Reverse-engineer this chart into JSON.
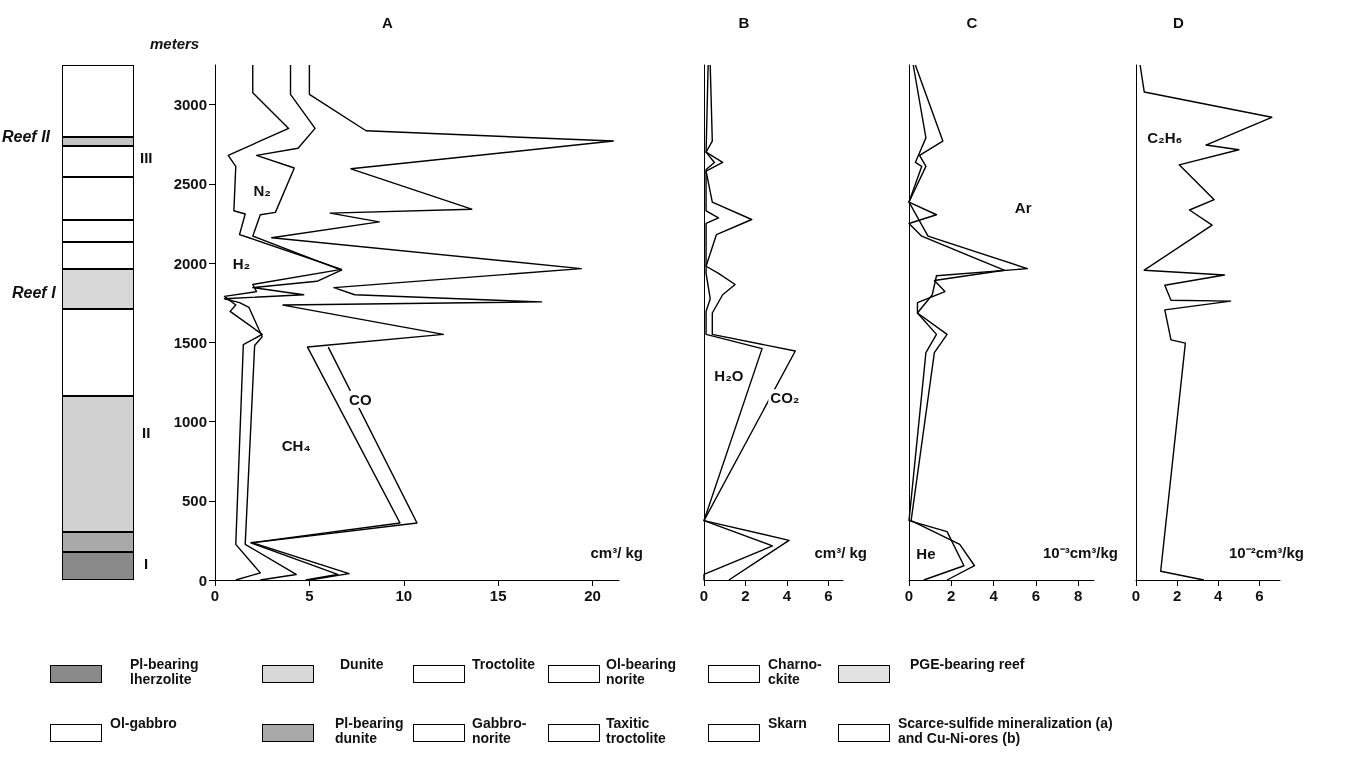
{
  "chart_data": [
    {
      "type": "line",
      "title": "A",
      "xlabel": "cm³/ kg",
      "ylabel": "meters",
      "marker": "none",
      "xlim": [
        0,
        21.4
      ],
      "xticks": [
        0,
        5,
        10,
        15,
        20
      ],
      "ylim": [
        0,
        3250
      ],
      "yticks": [
        0,
        500,
        1000,
        1500,
        2000,
        2500,
        3000
      ],
      "series": [
        {
          "color": "#000000",
          "x": [
            2.0,
            2.0,
            3.9,
            0.7,
            1.1,
            1.0,
            1.6,
            1.3,
            1.8,
            6.7,
            2.0,
            2.2,
            0.5,
            1.1,
            0.8,
            2.5,
            1.5,
            1.1,
            2.4,
            1.1
          ],
          "values": [
            3250,
            3075,
            2850,
            2680,
            2610,
            2330,
            2310,
            2180,
            2160,
            1960,
            1865,
            1820,
            1790,
            1735,
            1695,
            1550,
            1485,
            225,
            45,
            0
          ]
        },
        {
          "color": "#000000",
          "x": [
            4.0,
            4.0,
            5.3,
            4.4,
            2.2,
            4.2,
            3.2,
            2.4,
            2.0,
            6.7,
            5.4,
            2.0,
            4.7,
            0.5,
            1.3,
            1.8,
            2.5,
            2.1,
            1.6,
            4.3,
            2.4
          ],
          "values": [
            3250,
            3065,
            2850,
            2725,
            2680,
            2600,
            2320,
            2305,
            2170,
            1955,
            1885,
            1845,
            1800,
            1775,
            1750,
            1720,
            1535,
            1480,
            225,
            35,
            0
          ]
        },
        {
          "color": "#000000",
          "x": [
            5.0,
            5.0,
            8.0,
            21.1,
            7.2,
            13.6,
            6.1,
            8.7,
            3.0,
            19.4,
            6.3,
            7.4,
            17.3,
            3.6,
            12.1,
            4.9,
            9.8,
            1.9,
            6.5,
            4.8
          ],
          "values": [
            3250,
            3065,
            2835,
            2770,
            2595,
            2340,
            2315,
            2260,
            2160,
            1965,
            1845,
            1800,
            1755,
            1735,
            1550,
            1470,
            360,
            235,
            35,
            0
          ]
        },
        {
          "color": "#000000",
          "x": [
            6.0,
            10.7,
            2.0,
            7.1,
            5.0
          ],
          "values": [
            1470,
            360,
            235,
            40,
            0
          ]
        }
      ],
      "annotations": [
        "Reef II",
        "Reef I",
        "III",
        "II",
        "I",
        {
          "text": "N₂",
          "x": 2.5,
          "y": 2460
        },
        {
          "text": "H₂",
          "x": 1.4,
          "y": 2000
        },
        {
          "text": "CH₄",
          "x": 4.3,
          "y": 850
        },
        {
          "text": "CO",
          "x": 7.7,
          "y": 1140
        }
      ]
    },
    {
      "type": "line",
      "title": "B",
      "xlabel": "cm³/ kg",
      "marker": "none",
      "tick_labels": "x",
      "xlim": [
        0,
        6.7
      ],
      "xticks": [
        0,
        2,
        4,
        6
      ],
      "ylim": [
        0,
        3250
      ],
      "yticks": [
        0,
        500,
        1000,
        1500,
        2000,
        2500,
        3000
      ],
      "series": [
        {
          "color": "#000000",
          "x": [
            0.2,
            0.1,
            0.5,
            0.1,
            0.1,
            0.7,
            0.1,
            0.1,
            0.3,
            0.1,
            0.1,
            2.8,
            0,
            3.3,
            0,
            0
          ],
          "values": [
            3250,
            2700,
            2635,
            2590,
            2330,
            2285,
            2250,
            1935,
            1775,
            1695,
            1550,
            1460,
            375,
            215,
            35,
            0
          ]
        },
        {
          "color": "#000000",
          "x": [
            0.3,
            0.4,
            0.1,
            0.9,
            0.1,
            0.4,
            2.3,
            0.6,
            0.1,
            0.7,
            1.5,
            0.9,
            0.4,
            0.4,
            4.4,
            0,
            4.1,
            1.2
          ],
          "values": [
            3250,
            2770,
            2700,
            2635,
            2580,
            2385,
            2275,
            2180,
            1980,
            1935,
            1865,
            1800,
            1685,
            1550,
            1445,
            375,
            250,
            0
          ]
        }
      ],
      "annotations": [
        {
          "text": "H₂O",
          "x": 1.2,
          "y": 1290
        },
        {
          "text": "CO₂",
          "x": 3.9,
          "y": 1150
        }
      ]
    },
    {
      "type": "line",
      "title": "C",
      "xlabel": "10⁻³cm³/kg",
      "marker": "none",
      "tick_labels": "x",
      "xlim": [
        0,
        8.75
      ],
      "xticks": [
        0,
        2,
        4,
        6,
        8
      ],
      "ylim": [
        0,
        3250
      ],
      "yticks": [
        0,
        500,
        1000,
        1500,
        2000,
        2500,
        3000
      ],
      "series": [
        {
          "color": "#000000",
          "x": [
            0.2,
            0.8,
            0.3,
            0.6,
            0,
            1.3,
            0,
            0.6,
            4.5,
            1.2,
            1.7,
            0.4,
            0.4,
            1.3,
            0.8,
            0,
            1.8,
            2.6,
            0.7
          ],
          "values": [
            3250,
            2790,
            2635,
            2610,
            2385,
            2305,
            2250,
            2170,
            1955,
            1890,
            1820,
            1750,
            1685,
            1550,
            1435,
            375,
            305,
            90,
            0
          ]
        },
        {
          "color": "#000000",
          "x": [
            0.3,
            1.6,
            0.5,
            0.8,
            0,
            0.9,
            5.6,
            1.3,
            1.1,
            0.4,
            1.8,
            1.2,
            0.1,
            2.4,
            3.1,
            1.8
          ],
          "values": [
            3250,
            2770,
            2680,
            2610,
            2385,
            2170,
            1965,
            1920,
            1800,
            1685,
            1550,
            1435,
            375,
            225,
            90,
            0
          ]
        }
      ],
      "annotations": [
        {
          "text": "Ar",
          "x": 5.4,
          "y": 2350
        },
        {
          "text": "He",
          "x": 0.8,
          "y": 170
        }
      ]
    },
    {
      "type": "line",
      "title": "D",
      "xlabel": "10⁻²cm³/kg",
      "marker": "none",
      "tick_labels": "x",
      "xlim": [
        0,
        7
      ],
      "xticks": [
        0,
        2,
        4,
        6
      ],
      "ylim": [
        0,
        3250
      ],
      "yticks": [
        0,
        500,
        1000,
        1500,
        2000,
        2500,
        3000
      ],
      "series": [
        {
          "color": "#000000",
          "x": [
            0.2,
            0.4,
            6.6,
            3.4,
            5.0,
            2.1,
            3.8,
            2.6,
            3.7,
            0.4,
            4.3,
            1.4,
            1.7,
            4.6,
            1.4,
            1.7,
            2.4,
            1.2,
            3.3
          ],
          "values": [
            3250,
            3080,
            2920,
            2745,
            2715,
            2620,
            2400,
            2335,
            2240,
            1955,
            1925,
            1860,
            1765,
            1760,
            1705,
            1515,
            1495,
            55,
            0
          ]
        }
      ],
      "annotations": [
        {
          "text": "C₂H₆",
          "x": 1.4,
          "y": 2790
        }
      ]
    },
    {
      "type": "other",
      "annotations": [
        "Pl-bearing\nlherzolite",
        "Dunite",
        "Troctolite",
        "Ol-bearing\nnorite",
        "Charno-\nckite",
        "PGE-bearing reef",
        "Ol-gabbro",
        "Pl-bearing\ndunite",
        "Gabbro-\nnorite",
        "Taxitic\ntroctolite",
        "Skarn",
        "Scarce-sulfide mineralization (a)\nand Cu-Ni-ores (b)"
      ]
    }
  ]
}
